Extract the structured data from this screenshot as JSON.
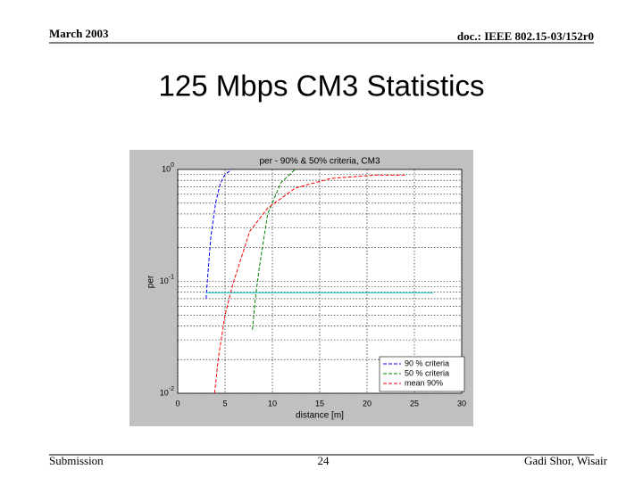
{
  "header": {
    "date": "March 2003",
    "doc": "doc.: IEEE 802.15-03/152r0"
  },
  "slide_title": "125 Mbps CM3 Statistics",
  "footer": {
    "left": "Submission",
    "page": "24",
    "right": "Gadi Shor, Wisair"
  },
  "chart_data": {
    "type": "line",
    "title": "per - 90% & 50% criteria, CM3",
    "x_label": "distance [m]",
    "y_label": "per",
    "log_y": true,
    "grid": true,
    "legend": "lower right",
    "xlim": [
      0,
      30
    ],
    "xticks": [
      0,
      5,
      10,
      15,
      20,
      25,
      30
    ],
    "ylim": [
      0.01,
      1
    ],
    "yticks": [
      {
        "value": 0.01,
        "label": "10^-2"
      },
      {
        "value": 0.1,
        "label": "10^-1"
      },
      {
        "value": 1,
        "label": "10^0"
      }
    ],
    "series": [
      {
        "name": "90 % criteria",
        "color": "#0000ff",
        "dash": true,
        "x": [
          3.0,
          3.2,
          3.5,
          4.0,
          4.5,
          5.0,
          5.7
        ],
        "values": [
          0.07,
          0.12,
          0.25,
          0.5,
          0.75,
          0.9,
          1.0
        ]
      },
      {
        "name": "50 % criteria",
        "color": "#008000",
        "dash": true,
        "x": [
          7.9,
          8.2,
          8.6,
          9.5,
          10.9,
          12.4
        ],
        "values": [
          0.037,
          0.07,
          0.13,
          0.4,
          0.76,
          1.0
        ]
      },
      {
        "name": "mean 90%",
        "color": "#ff0000",
        "dash": true,
        "x": [
          3.9,
          4.3,
          5.0,
          5.8,
          7.6,
          9.5,
          12.4,
          16.1,
          20.8,
          24.2
        ],
        "values": [
          0.01,
          0.021,
          0.05,
          0.093,
          0.28,
          0.45,
          0.68,
          0.83,
          0.89,
          0.89
        ]
      },
      {
        "color": "#00bfbf",
        "dash": false,
        "x": [
          3.0,
          27.0
        ],
        "values": [
          0.079,
          0.079
        ]
      }
    ]
  }
}
